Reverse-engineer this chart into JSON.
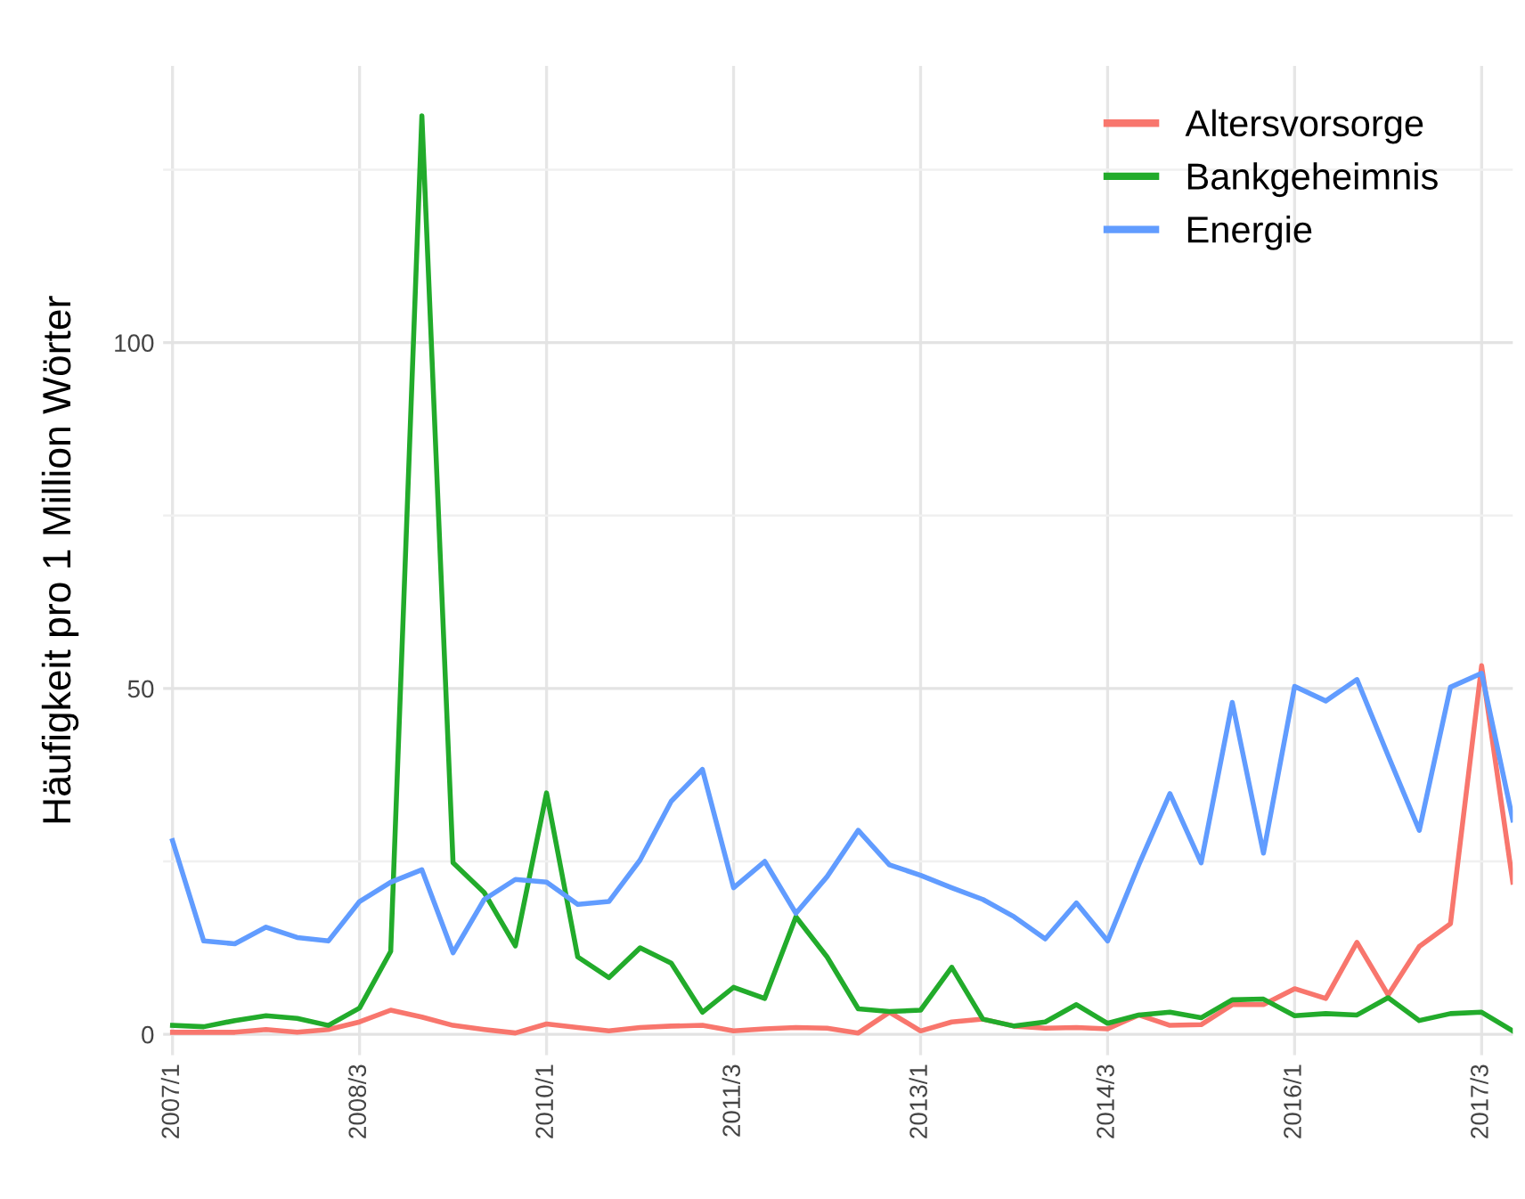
{
  "chart_data": {
    "type": "line",
    "ylabel": "Häufigkeit pro 1 Million Wörter",
    "categories": [
      "2007/1",
      null,
      null,
      null,
      null,
      null,
      "2008/3",
      null,
      null,
      null,
      null,
      null,
      "2010/1",
      null,
      null,
      null,
      null,
      null,
      "2011/3",
      null,
      null,
      null,
      null,
      null,
      "2013/1",
      null,
      null,
      null,
      null,
      null,
      "2014/3",
      null,
      null,
      null,
      null,
      null,
      "2016/1",
      null,
      null,
      null,
      null,
      null,
      "2017/3",
      null
    ],
    "series": [
      {
        "name": "Altersvorsorge",
        "color": "#f8766d",
        "values": [
          0.3,
          0.3,
          0.3,
          0.7,
          0.3,
          0.7,
          1.8,
          3.5,
          2.5,
          1.3,
          0.7,
          0.2,
          1.5,
          1,
          0.5,
          1,
          1.2,
          1.3,
          0.5,
          0.8,
          1,
          0.9,
          0.2,
          3.2,
          0.5,
          1.8,
          2.2,
          1.2,
          0.9,
          1,
          0.8,
          2.8,
          1.3,
          1.4,
          4.3,
          4.3,
          6.6,
          5.2,
          13.3,
          5.7,
          12.7,
          16,
          53.3,
          22
        ]
      },
      {
        "name": "Bankgeheimnis",
        "color": "#22ab2b",
        "values": [
          1.3,
          1.1,
          2,
          2.7,
          2.3,
          1.3,
          3.8,
          12,
          132.8,
          24.8,
          20.5,
          12.8,
          34.9,
          11.2,
          8.2,
          12.5,
          10.3,
          3.2,
          6.8,
          5.2,
          17,
          11.2,
          3.7,
          3.3,
          3.5,
          9.7,
          2.2,
          1.2,
          1.8,
          4.3,
          1.6,
          2.8,
          3.2,
          2.4,
          5,
          5.1,
          2.7,
          3,
          2.8,
          5.3,
          2,
          3,
          3.2,
          0.5
        ]
      },
      {
        "name": "Energie",
        "color": "#619cff",
        "values": [
          28,
          13.5,
          13.1,
          15.5,
          14,
          13.5,
          19.2,
          22,
          23.8,
          11.8,
          19.5,
          22.4,
          22,
          18.8,
          19.2,
          25.2,
          33.7,
          38.3,
          21.2,
          25,
          17.5,
          22.8,
          29.5,
          24.5,
          23,
          21.2,
          19.5,
          17,
          13.8,
          19,
          13.5,
          24.5,
          34.8,
          24.8,
          48,
          26.2,
          50.3,
          48.2,
          51.3,
          40.3,
          29.5,
          50.2,
          52.2,
          31
        ]
      }
    ],
    "ylim": [
      -3,
      140
    ],
    "yticks": [
      0,
      {
        "value": 25,
        "label": null
      },
      50,
      {
        "value": 75,
        "label": null
      },
      100,
      {
        "value": 125,
        "label": null
      }
    ],
    "grid": true,
    "legend": "top right",
    "line_style": "solid",
    "marker": "none"
  }
}
